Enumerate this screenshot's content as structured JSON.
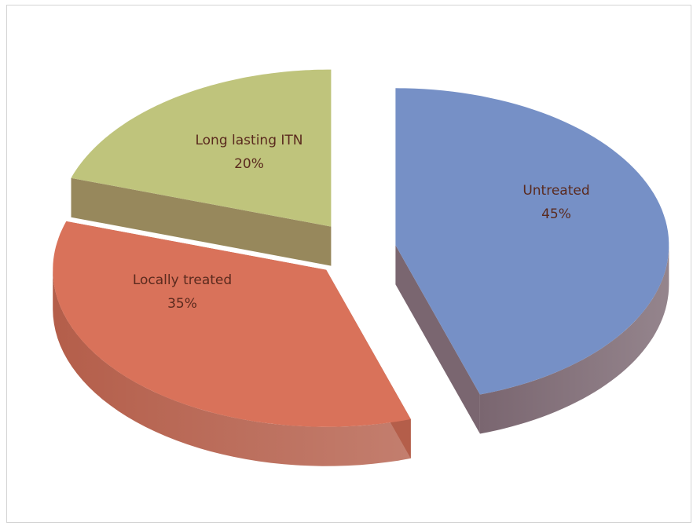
{
  "chart_data": {
    "type": "pie",
    "style": "3d-exploded",
    "title": "",
    "legend": "none",
    "series": [
      {
        "name": "Untreated",
        "value": 45,
        "label": "Untreated",
        "pct_label": "45%",
        "color": "#7690c6",
        "side_color": "#7a6670"
      },
      {
        "name": "Locally treated",
        "value": 35,
        "label": "Locally treated",
        "pct_label": "35%",
        "color": "#d9725a",
        "side_color": "#b45e4a"
      },
      {
        "name": "Long lasting ITN",
        "value": 20,
        "label": "Long lasting ITN",
        "pct_label": "20%",
        "color": "#bfc47c",
        "side_color": "#97885c"
      }
    ]
  }
}
